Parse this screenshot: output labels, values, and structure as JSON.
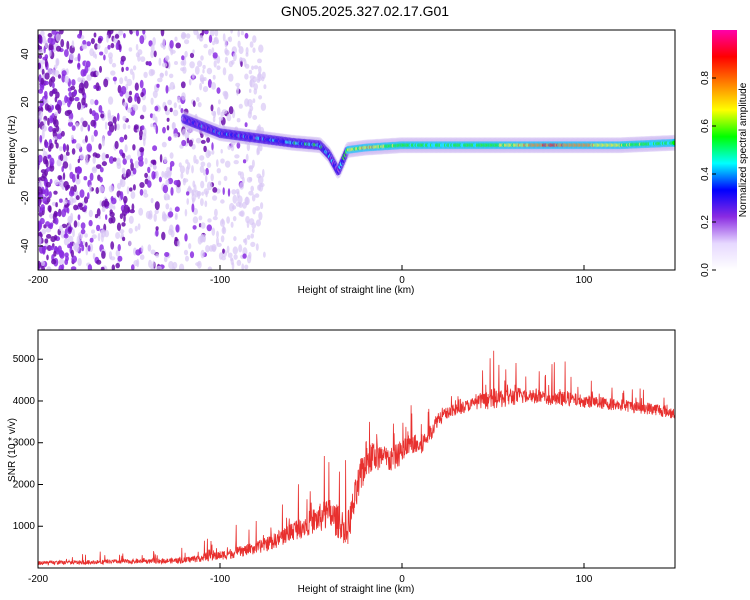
{
  "figure_title": "GN05.2025.327.02.17.G01",
  "chart_data": [
    {
      "type": "heatmap",
      "title": "GN05.2025.327.02.17.G01",
      "xlabel": "Height of straight line (km)",
      "ylabel": "Frequency (Hz)",
      "xlim": [
        -200,
        150
      ],
      "ylim": [
        -50,
        50
      ],
      "xticks": [
        -200,
        -100,
        0,
        100
      ],
      "yticks": [
        -40,
        -20,
        0,
        20,
        40
      ],
      "colorbar": {
        "label": "Normalized spectral amplitude",
        "range": [
          0,
          1
        ],
        "ticks": [
          0.0,
          0.2,
          0.4,
          0.6,
          0.8
        ],
        "colormap": [
          "#ffffff",
          "#e6d8ff",
          "#8a2be2",
          "#0000ff",
          "#00ffff",
          "#00ff00",
          "#ffff00",
          "#ff8000",
          "#ff0000",
          "#ff00aa"
        ]
      },
      "trace": {
        "x": [
          -120,
          -110,
          -100,
          -80,
          -60,
          -45,
          -40,
          -35,
          -30,
          -20,
          0,
          20,
          50,
          80,
          100,
          120,
          150
        ],
        "frequency": [
          13,
          10,
          7,
          5,
          3,
          2,
          -2,
          -9,
          0,
          1,
          2,
          2,
          2,
          2,
          2,
          2,
          3
        ],
        "amplitude": [
          0.25,
          0.3,
          0.3,
          0.35,
          0.4,
          0.45,
          0.4,
          0.3,
          0.6,
          0.7,
          0.55,
          0.5,
          0.55,
          0.85,
          0.75,
          0.6,
          0.5
        ]
      },
      "noise_region_x": [
        -200,
        -75
      ]
    },
    {
      "type": "line",
      "xlabel": "Height of straight line (km)",
      "ylabel": "SNR (10 * v/v)",
      "xlim": [
        -200,
        150
      ],
      "ylim": [
        0,
        5700
      ],
      "xticks": [
        -200,
        -100,
        0,
        100
      ],
      "yticks": [
        1000,
        2000,
        3000,
        4000,
        5000
      ],
      "series": [
        {
          "name": "SNR",
          "color": "#e8302e",
          "x": [
            -200,
            -180,
            -160,
            -140,
            -120,
            -110,
            -100,
            -90,
            -80,
            -70,
            -60,
            -50,
            -40,
            -30,
            -25,
            -20,
            -15,
            -10,
            -5,
            0,
            5,
            10,
            15,
            20,
            30,
            40,
            50,
            60,
            70,
            80,
            90,
            100,
            110,
            120,
            130,
            140,
            150
          ],
          "y": [
            120,
            130,
            150,
            160,
            180,
            250,
            300,
            380,
            480,
            650,
            900,
            1100,
            1300,
            900,
            1800,
            2600,
            2700,
            2600,
            2600,
            2800,
            3000,
            2900,
            3200,
            3600,
            3800,
            3950,
            4050,
            4100,
            4150,
            4050,
            4050,
            4000,
            3950,
            3900,
            3850,
            3800,
            3700
          ],
          "noise_amplitude": [
            100,
            100,
            100,
            110,
            140,
            200,
            220,
            260,
            300,
            380,
            500,
            600,
            800,
            800,
            900,
            900,
            800,
            700,
            600,
            600,
            500,
            500,
            450,
            350,
            300,
            300,
            500,
            450,
            400,
            350,
            350,
            300,
            300,
            300,
            300,
            300,
            300
          ]
        }
      ]
    }
  ]
}
